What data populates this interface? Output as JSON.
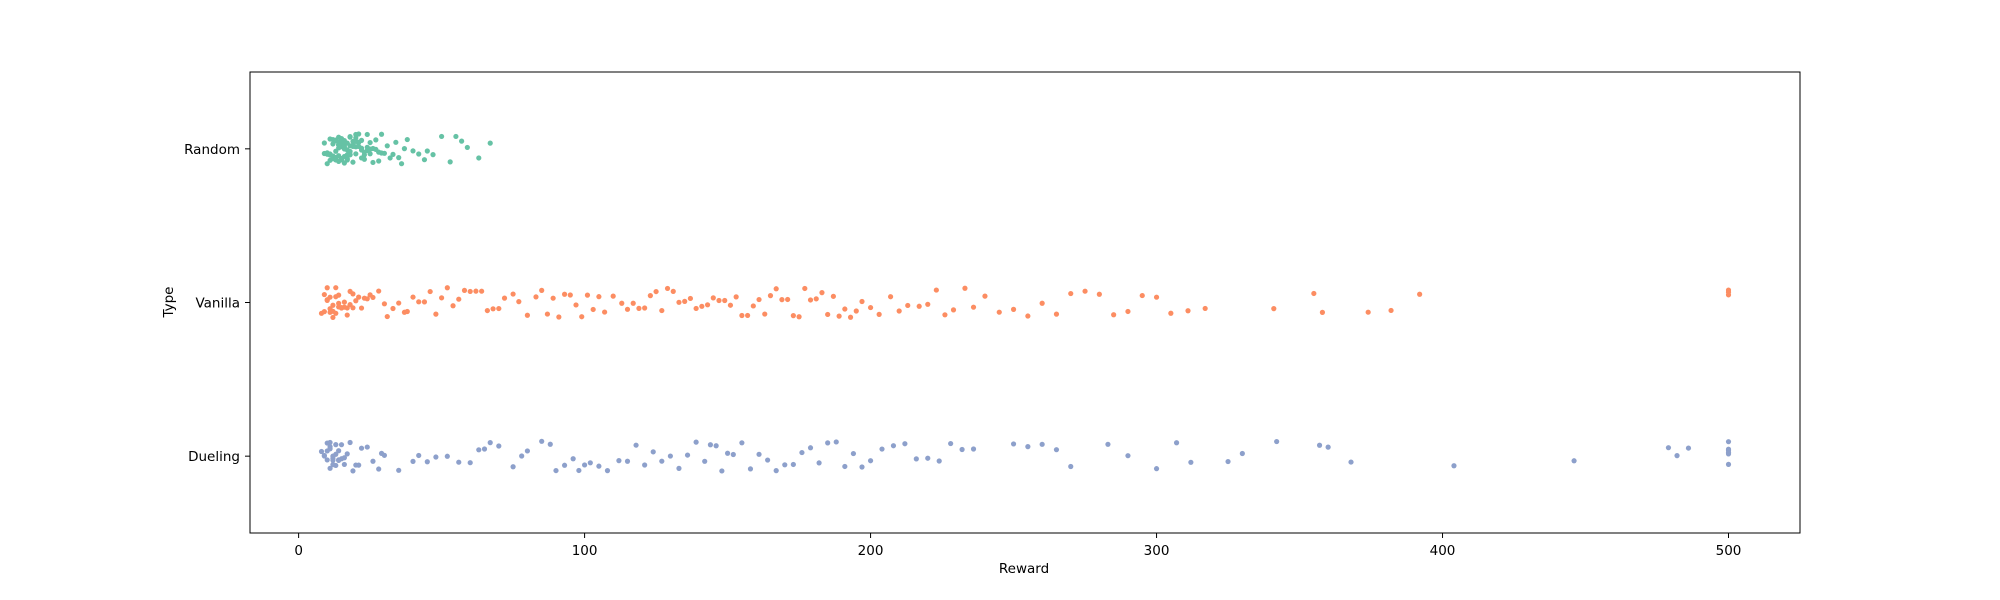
{
  "chart_data": {
    "type": "scatter",
    "subtype": "strip",
    "title": "",
    "xlabel": "Reward",
    "ylabel": "Type",
    "xlim": [
      -17,
      525
    ],
    "xticks": [
      0,
      100,
      200,
      300,
      400,
      500
    ],
    "categories": [
      "Random",
      "Vanilla",
      "Dueling"
    ],
    "grid": false,
    "legend": "none",
    "colors": {
      "Random": "#66c2a5",
      "Vanilla": "#fc8d62",
      "Dueling": "#8da0cb"
    },
    "series": [
      {
        "category": "Random",
        "values": [
          9,
          9,
          10,
          10,
          10,
          11,
          11,
          11,
          11,
          12,
          12,
          12,
          12,
          12,
          13,
          13,
          13,
          13,
          13,
          13,
          14,
          14,
          14,
          14,
          14,
          14,
          14,
          15,
          15,
          15,
          15,
          15,
          15,
          15,
          16,
          16,
          16,
          16,
          16,
          16,
          16,
          17,
          17,
          17,
          17,
          17,
          17,
          18,
          18,
          18,
          18,
          18,
          18,
          19,
          19,
          19,
          19,
          19,
          20,
          20,
          20,
          20,
          20,
          21,
          21,
          21,
          21,
          22,
          22,
          22,
          22,
          23,
          23,
          23,
          24,
          24,
          24,
          25,
          25,
          25,
          26,
          26,
          27,
          27,
          28,
          28,
          29,
          29,
          30,
          31,
          32,
          33,
          34,
          35,
          36,
          37,
          38,
          40,
          42,
          44,
          45,
          47,
          50,
          53,
          55,
          57,
          59,
          63,
          67
        ]
      },
      {
        "category": "Vanilla",
        "values": [
          8,
          9,
          9,
          10,
          10,
          10,
          11,
          11,
          11,
          12,
          12,
          12,
          13,
          13,
          13,
          14,
          14,
          14,
          15,
          15,
          16,
          16,
          17,
          17,
          18,
          18,
          19,
          19,
          20,
          21,
          22,
          23,
          24,
          25,
          26,
          28,
          30,
          31,
          33,
          35,
          37,
          38,
          40,
          42,
          44,
          46,
          48,
          50,
          52,
          54,
          56,
          58,
          60,
          62,
          64,
          66,
          68,
          70,
          72,
          75,
          77,
          80,
          83,
          85,
          87,
          89,
          91,
          93,
          95,
          97,
          99,
          101,
          103,
          105,
          107,
          110,
          113,
          115,
          117,
          119,
          121,
          123,
          125,
          127,
          129,
          131,
          133,
          135,
          137,
          139,
          141,
          143,
          145,
          147,
          149,
          151,
          153,
          155,
          157,
          159,
          161,
          163,
          165,
          167,
          169,
          171,
          173,
          175,
          177,
          179,
          181,
          183,
          185,
          187,
          189,
          191,
          193,
          195,
          197,
          200,
          203,
          207,
          210,
          213,
          217,
          220,
          223,
          226,
          229,
          233,
          236,
          240,
          245,
          250,
          255,
          260,
          265,
          270,
          275,
          280,
          285,
          290,
          295,
          300,
          305,
          311,
          317,
          341,
          355,
          358,
          374,
          382,
          392,
          500,
          500,
          500
        ]
      },
      {
        "category": "Dueling",
        "values": [
          8,
          9,
          9,
          10,
          10,
          10,
          11,
          11,
          11,
          11,
          12,
          12,
          12,
          12,
          13,
          13,
          13,
          14,
          14,
          14,
          15,
          15,
          16,
          16,
          17,
          18,
          19,
          20,
          21,
          22,
          24,
          26,
          28,
          29,
          30,
          35,
          40,
          42,
          45,
          48,
          52,
          56,
          60,
          63,
          65,
          67,
          70,
          75,
          78,
          80,
          85,
          88,
          90,
          93,
          96,
          98,
          100,
          102,
          105,
          108,
          112,
          115,
          118,
          121,
          124,
          127,
          130,
          133,
          136,
          139,
          142,
          144,
          146,
          148,
          150,
          152,
          155,
          158,
          161,
          164,
          167,
          170,
          173,
          176,
          179,
          182,
          185,
          188,
          191,
          194,
          197,
          200,
          204,
          208,
          212,
          216,
          220,
          224,
          228,
          232,
          236,
          250,
          255,
          260,
          265,
          270,
          283,
          290,
          300,
          307,
          312,
          325,
          330,
          342,
          357,
          360,
          368,
          404,
          446,
          479,
          482,
          486,
          500,
          500,
          500,
          500,
          500,
          500
        ]
      }
    ]
  }
}
